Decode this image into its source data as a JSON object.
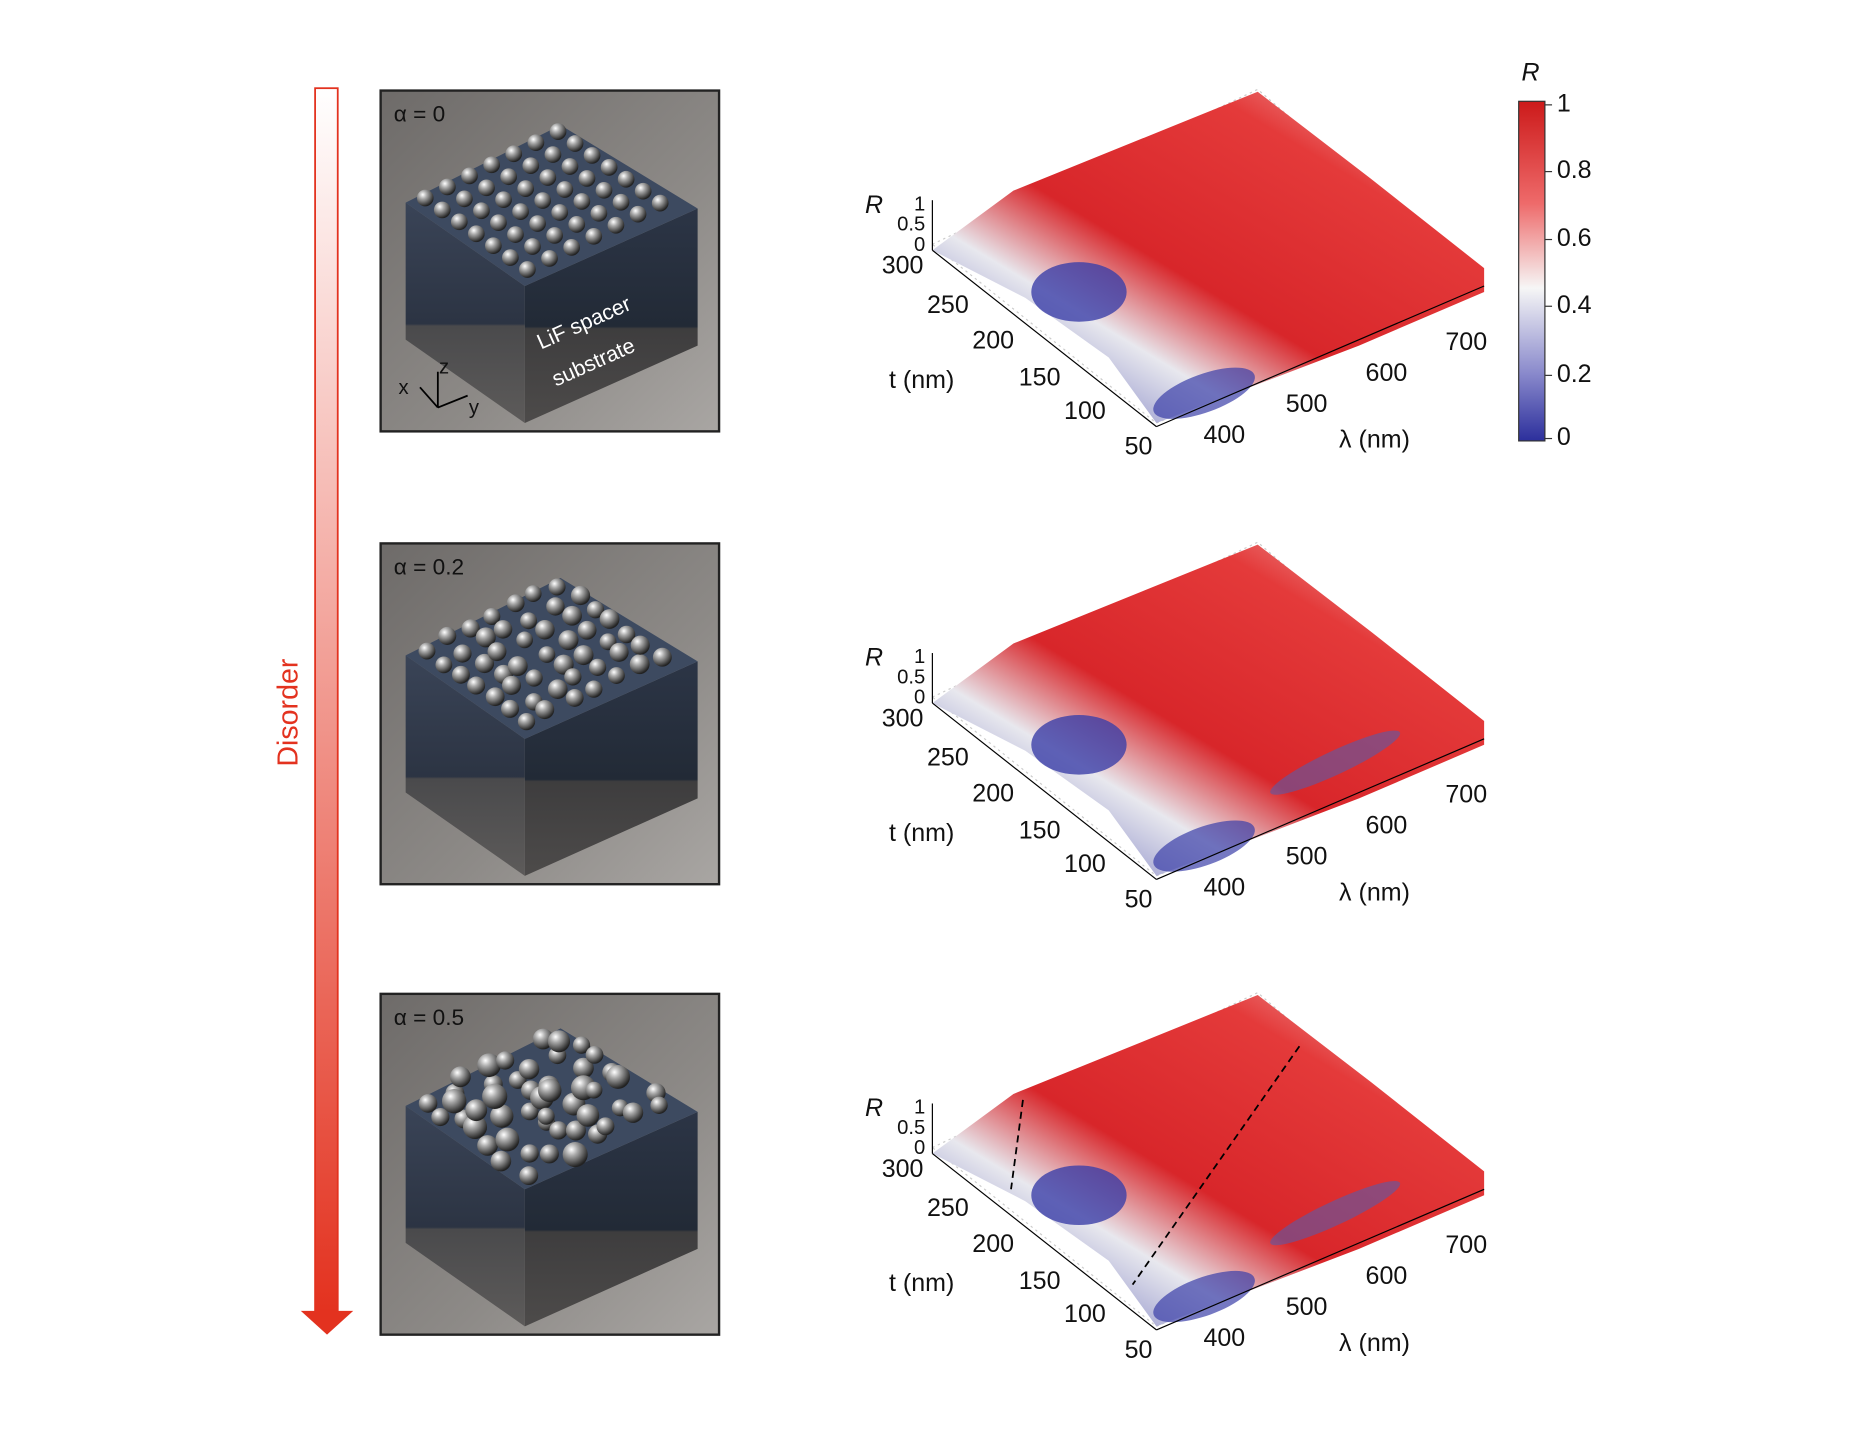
{
  "figure": {
    "disorder_label": "Disorder",
    "panels": [
      {
        "alpha_label": "α = 0"
      },
      {
        "alpha_label": "α = 0.2"
      },
      {
        "alpha_label": "α = 0.5"
      }
    ],
    "spacer_label": "LiF spacer",
    "substrate_label": "substrate",
    "axis_x": "x",
    "axis_y": "y",
    "axis_z": "z",
    "surface_axes": {
      "r_label": "R",
      "r_ticks": [
        1,
        0.5,
        0
      ],
      "t_label": "t (nm)",
      "t_ticks": [
        300,
        250,
        200,
        150,
        100,
        50
      ],
      "lambda_label": "λ (nm)",
      "lambda_ticks": [
        400,
        500,
        600,
        700
      ]
    },
    "colorbar": {
      "label": "R",
      "ticks": [
        1,
        0.8,
        0.6,
        0.4,
        0.2,
        0
      ]
    }
  }
}
